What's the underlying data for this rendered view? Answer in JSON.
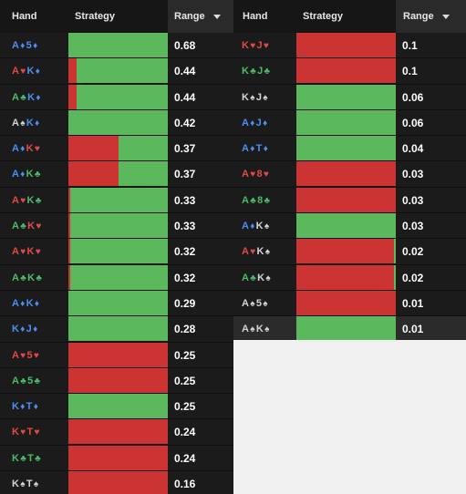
{
  "colors": {
    "spade": "#d4d4d4",
    "heart": "#e34848",
    "diamond": "#4a8ff2",
    "club": "#4cbb6a",
    "fold": "#cc3333",
    "call": "#5cb85c"
  },
  "left_panel": {
    "header": {
      "hand": "Hand",
      "strategy": "Strategy",
      "range": "Range"
    },
    "rows": [
      {
        "hand": [
          {
            "r": "A",
            "s": "♦",
            "c": "diamond"
          },
          {
            "r": "5",
            "s": "♦",
            "c": "diamond"
          }
        ],
        "green_pct": 100,
        "range": "0.68"
      },
      {
        "hand": [
          {
            "r": "A",
            "s": "♥",
            "c": "heart"
          },
          {
            "r": "K",
            "s": "♦",
            "c": "diamond"
          }
        ],
        "green_pct": 92,
        "range": "0.44"
      },
      {
        "hand": [
          {
            "r": "A",
            "s": "♣",
            "c": "club"
          },
          {
            "r": "K",
            "s": "♦",
            "c": "diamond"
          }
        ],
        "green_pct": 92,
        "range": "0.44"
      },
      {
        "hand": [
          {
            "r": "A",
            "s": "♠",
            "c": "spade"
          },
          {
            "r": "K",
            "s": "♦",
            "c": "diamond"
          }
        ],
        "green_pct": 100,
        "range": "0.42"
      },
      {
        "hand": [
          {
            "r": "A",
            "s": "♦",
            "c": "diamond"
          },
          {
            "r": "K",
            "s": "♥",
            "c": "heart"
          }
        ],
        "green_pct": 50,
        "range": "0.37"
      },
      {
        "hand": [
          {
            "r": "A",
            "s": "♦",
            "c": "diamond"
          },
          {
            "r": "K",
            "s": "♣",
            "c": "club"
          }
        ],
        "green_pct": 50,
        "range": "0.37"
      },
      {
        "hand": [
          {
            "r": "A",
            "s": "♥",
            "c": "heart"
          },
          {
            "r": "K",
            "s": "♣",
            "c": "club"
          }
        ],
        "green_pct": 98,
        "range": "0.33"
      },
      {
        "hand": [
          {
            "r": "A",
            "s": "♣",
            "c": "club"
          },
          {
            "r": "K",
            "s": "♥",
            "c": "heart"
          }
        ],
        "green_pct": 98,
        "range": "0.33"
      },
      {
        "hand": [
          {
            "r": "A",
            "s": "♥",
            "c": "heart"
          },
          {
            "r": "K",
            "s": "♥",
            "c": "heart"
          }
        ],
        "green_pct": 98,
        "range": "0.32"
      },
      {
        "hand": [
          {
            "r": "A",
            "s": "♣",
            "c": "club"
          },
          {
            "r": "K",
            "s": "♣",
            "c": "club"
          }
        ],
        "green_pct": 98,
        "range": "0.32"
      },
      {
        "hand": [
          {
            "r": "A",
            "s": "♦",
            "c": "diamond"
          },
          {
            "r": "K",
            "s": "♦",
            "c": "diamond"
          }
        ],
        "green_pct": 100,
        "range": "0.29"
      },
      {
        "hand": [
          {
            "r": "K",
            "s": "♦",
            "c": "diamond"
          },
          {
            "r": "J",
            "s": "♦",
            "c": "diamond"
          }
        ],
        "green_pct": 100,
        "range": "0.28"
      },
      {
        "hand": [
          {
            "r": "A",
            "s": "♥",
            "c": "heart"
          },
          {
            "r": "5",
            "s": "♥",
            "c": "heart"
          }
        ],
        "green_pct": 0,
        "range": "0.25"
      },
      {
        "hand": [
          {
            "r": "A",
            "s": "♣",
            "c": "club"
          },
          {
            "r": "5",
            "s": "♣",
            "c": "club"
          }
        ],
        "green_pct": 0,
        "range": "0.25"
      },
      {
        "hand": [
          {
            "r": "K",
            "s": "♦",
            "c": "diamond"
          },
          {
            "r": "T",
            "s": "♦",
            "c": "diamond"
          }
        ],
        "green_pct": 100,
        "range": "0.25"
      },
      {
        "hand": [
          {
            "r": "K",
            "s": "♥",
            "c": "heart"
          },
          {
            "r": "T",
            "s": "♥",
            "c": "heart"
          }
        ],
        "green_pct": 0,
        "range": "0.24"
      },
      {
        "hand": [
          {
            "r": "K",
            "s": "♣",
            "c": "club"
          },
          {
            "r": "T",
            "s": "♣",
            "c": "club"
          }
        ],
        "green_pct": 0,
        "range": "0.24"
      },
      {
        "hand": [
          {
            "r": "K",
            "s": "♠",
            "c": "spade"
          },
          {
            "r": "T",
            "s": "♠",
            "c": "spade"
          }
        ],
        "green_pct": 0,
        "range": "0.16"
      }
    ]
  },
  "right_panel": {
    "header": {
      "hand": "Hand",
      "strategy": "Strategy",
      "range": "Range"
    },
    "rows": [
      {
        "hand": [
          {
            "r": "K",
            "s": "♥",
            "c": "heart"
          },
          {
            "r": "J",
            "s": "♥",
            "c": "heart"
          }
        ],
        "green_pct": 0,
        "range": "0.1"
      },
      {
        "hand": [
          {
            "r": "K",
            "s": "♣",
            "c": "club"
          },
          {
            "r": "J",
            "s": "♣",
            "c": "club"
          }
        ],
        "green_pct": 0,
        "range": "0.1"
      },
      {
        "hand": [
          {
            "r": "K",
            "s": "♠",
            "c": "spade"
          },
          {
            "r": "J",
            "s": "♠",
            "c": "spade"
          }
        ],
        "green_pct": 100,
        "range": "0.06"
      },
      {
        "hand": [
          {
            "r": "A",
            "s": "♦",
            "c": "diamond"
          },
          {
            "r": "J",
            "s": "♦",
            "c": "diamond"
          }
        ],
        "green_pct": 100,
        "range": "0.06"
      },
      {
        "hand": [
          {
            "r": "A",
            "s": "♦",
            "c": "diamond"
          },
          {
            "r": "T",
            "s": "♦",
            "c": "diamond"
          }
        ],
        "green_pct": 100,
        "range": "0.04"
      },
      {
        "hand": [
          {
            "r": "A",
            "s": "♥",
            "c": "heart"
          },
          {
            "r": "8",
            "s": "♥",
            "c": "heart"
          }
        ],
        "green_pct": 0,
        "range": "0.03"
      },
      {
        "hand": [
          {
            "r": "A",
            "s": "♣",
            "c": "club"
          },
          {
            "r": "8",
            "s": "♣",
            "c": "club"
          }
        ],
        "green_pct": 0,
        "range": "0.03"
      },
      {
        "hand": [
          {
            "r": "A",
            "s": "♦",
            "c": "diamond"
          },
          {
            "r": "K",
            "s": "♠",
            "c": "spade"
          }
        ],
        "green_pct": 100,
        "range": "0.03"
      },
      {
        "hand": [
          {
            "r": "A",
            "s": "♥",
            "c": "heart"
          },
          {
            "r": "K",
            "s": "♠",
            "c": "spade"
          }
        ],
        "green_pct": 2,
        "range": "0.02",
        "green_side": "right"
      },
      {
        "hand": [
          {
            "r": "A",
            "s": "♣",
            "c": "club"
          },
          {
            "r": "K",
            "s": "♠",
            "c": "spade"
          }
        ],
        "green_pct": 2,
        "range": "0.02",
        "green_side": "right"
      },
      {
        "hand": [
          {
            "r": "A",
            "s": "♠",
            "c": "spade"
          },
          {
            "r": "5",
            "s": "♠",
            "c": "spade"
          }
        ],
        "green_pct": 0,
        "range": "0.01"
      },
      {
        "hand": [
          {
            "r": "A",
            "s": "♠",
            "c": "spade"
          },
          {
            "r": "K",
            "s": "♠",
            "c": "spade"
          }
        ],
        "green_pct": 100,
        "range": "0.01",
        "highlight": true
      }
    ]
  }
}
